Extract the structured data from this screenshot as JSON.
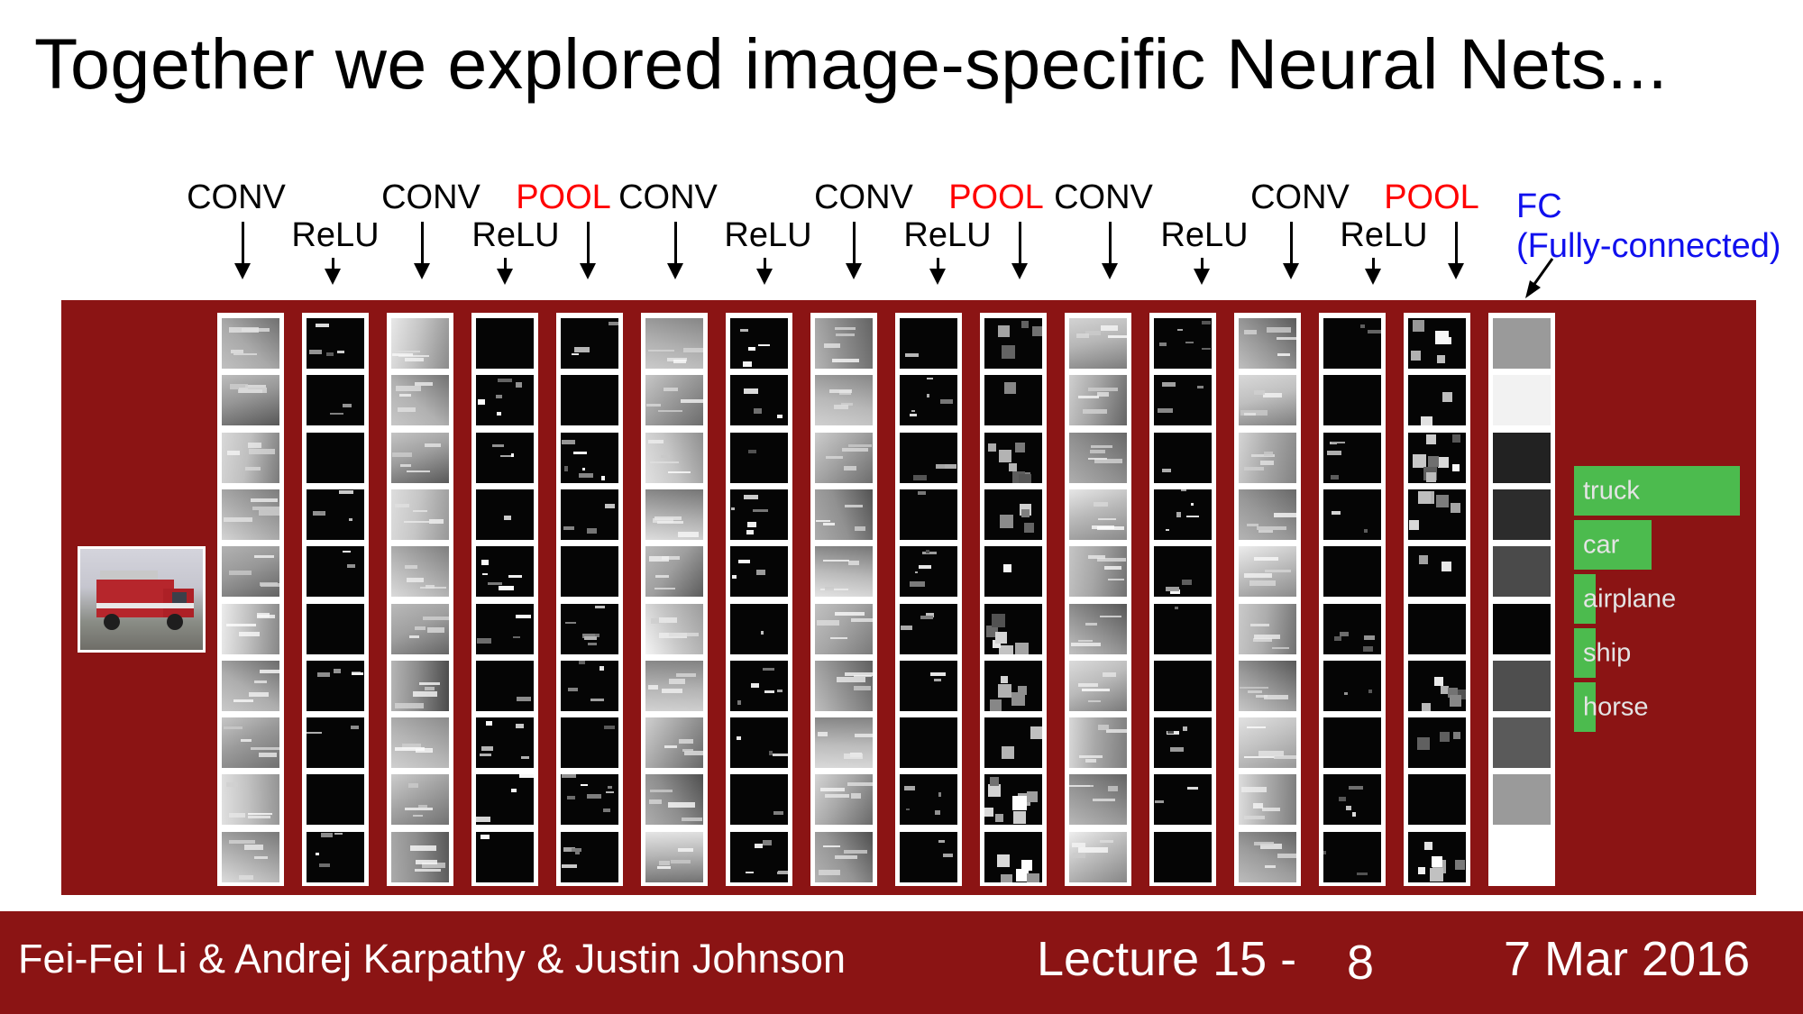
{
  "slide": {
    "title": "Together we explored image-specific Neural Nets..."
  },
  "layers": {
    "upper_labels": [
      {
        "text": "CONV",
        "color": "#000000"
      },
      {
        "text": "CONV",
        "color": "#000000"
      },
      {
        "text": "POOL",
        "color": "#ff0000"
      },
      {
        "text": "CONV",
        "color": "#000000"
      },
      {
        "text": "CONV",
        "color": "#000000"
      },
      {
        "text": "POOL",
        "color": "#ff0000"
      },
      {
        "text": "CONV",
        "color": "#000000"
      },
      {
        "text": "CONV",
        "color": "#000000"
      },
      {
        "text": "POOL",
        "color": "#ff0000"
      }
    ],
    "lower_labels": [
      "ReLU",
      "ReLU",
      "ReLU",
      "ReLU",
      "ReLU",
      "ReLU"
    ],
    "fc_label_line1": "FC",
    "fc_label_line2": "(Fully-connected)"
  },
  "columns": [
    {
      "type": "conv"
    },
    {
      "type": "relu"
    },
    {
      "type": "conv"
    },
    {
      "type": "relu"
    },
    {
      "type": "pool"
    },
    {
      "type": "conv"
    },
    {
      "type": "relu"
    },
    {
      "type": "conv"
    },
    {
      "type": "relu"
    },
    {
      "type": "pool"
    },
    {
      "type": "conv"
    },
    {
      "type": "relu"
    },
    {
      "type": "conv"
    },
    {
      "type": "relu"
    },
    {
      "type": "pool"
    },
    {
      "type": "fc"
    }
  ],
  "fc_activations": [
    "#9a9a9a",
    "#f2f2f2",
    "#222222",
    "#2c2c2c",
    "#4a4a4a",
    "#050505",
    "#4e4e4e",
    "#5a5a5a",
    "#9a9a9a",
    "#ffffff"
  ],
  "predictions": [
    {
      "label": "truck",
      "score": 1.0
    },
    {
      "label": "car",
      "score": 0.47
    },
    {
      "label": "airplane",
      "score": 0.13
    },
    {
      "label": "ship",
      "score": 0.13
    },
    {
      "label": "horse",
      "score": 0.13
    }
  ],
  "colors": {
    "panel": "#8b1414",
    "bars": "#4cbb4e",
    "pool_text": "#ff0000",
    "fc_text": "#1010ee"
  },
  "footer": {
    "authors": "Fei-Fei Li & Andrej Karpathy & Justin Johnson",
    "lecture": "Lecture 15 -",
    "page": "8",
    "date": "7 Mar 2016"
  }
}
